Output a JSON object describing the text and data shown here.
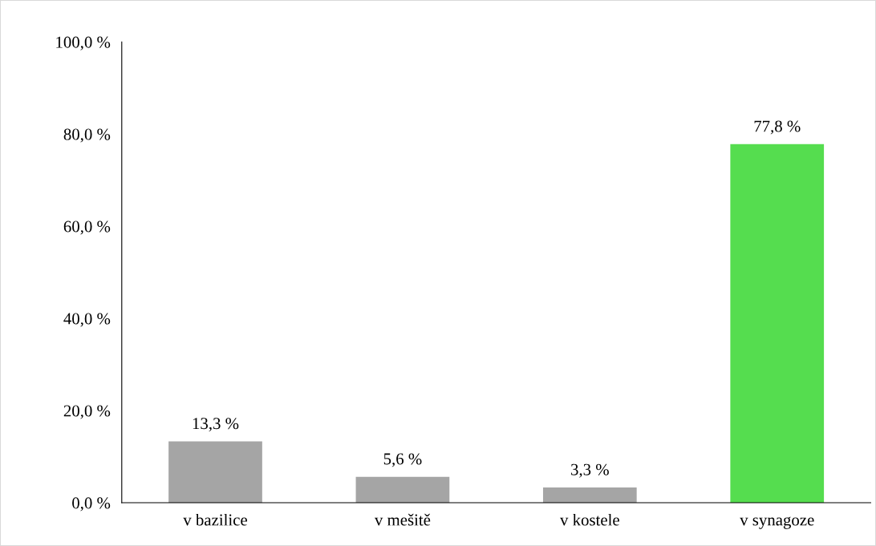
{
  "chart_data": {
    "type": "bar",
    "categories": [
      "v bazilice",
      "v mešitě",
      "v kostele",
      "v synagoze"
    ],
    "values": [
      13.3,
      5.6,
      3.3,
      77.8
    ],
    "colors": [
      "#a5a5a5",
      "#a5a5a5",
      "#a5a5a5",
      "#55dd4f"
    ],
    "value_labels": [
      "13,3 %",
      "5,6 %",
      "3,3 %",
      "77,8 %"
    ],
    "ylim": [
      0,
      100
    ],
    "yticks": [
      {
        "value": 0,
        "label": "0,0 %"
      },
      {
        "value": 20,
        "label": "20,0 %"
      },
      {
        "value": 40,
        "label": "40,0 %"
      },
      {
        "value": 60,
        "label": "60,0 %"
      },
      {
        "value": 80,
        "label": "80,0 %"
      },
      {
        "value": 100,
        "label": "100,0 %"
      }
    ],
    "grid": false,
    "legend": false
  }
}
